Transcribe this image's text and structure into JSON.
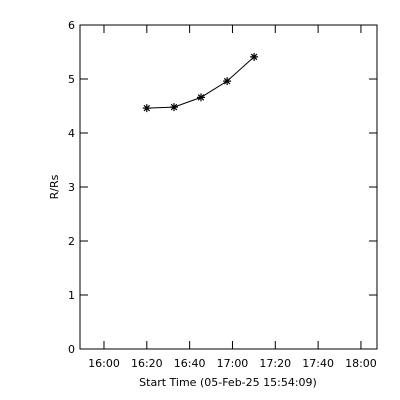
{
  "chart_data": {
    "type": "line",
    "xlabel": "Start Time (05-Feb-25 15:54:09)",
    "ylabel": "R/Rs",
    "x": [
      980,
      992.7,
      1005.3,
      1017.5,
      1030.1
    ],
    "series": [
      {
        "values": [
          4.46,
          4.48,
          4.66,
          4.96,
          5.41
        ],
        "color": "#000000"
      }
    ],
    "marker": "asterisk",
    "xlim": [
      948.8,
      1087.5
    ],
    "xticks": [
      {
        "value": 960,
        "label": "16:00"
      },
      {
        "value": 980,
        "label": "16:20"
      },
      {
        "value": 1000,
        "label": "16:40"
      },
      {
        "value": 1020,
        "label": "17:00"
      },
      {
        "value": 1040,
        "label": "17:20"
      },
      {
        "value": 1060,
        "label": "17:40"
      },
      {
        "value": 1080,
        "label": "18:00"
      }
    ],
    "ylim": [
      0,
      6
    ],
    "yticks": [
      0,
      1,
      2,
      3,
      4,
      5,
      6
    ]
  }
}
